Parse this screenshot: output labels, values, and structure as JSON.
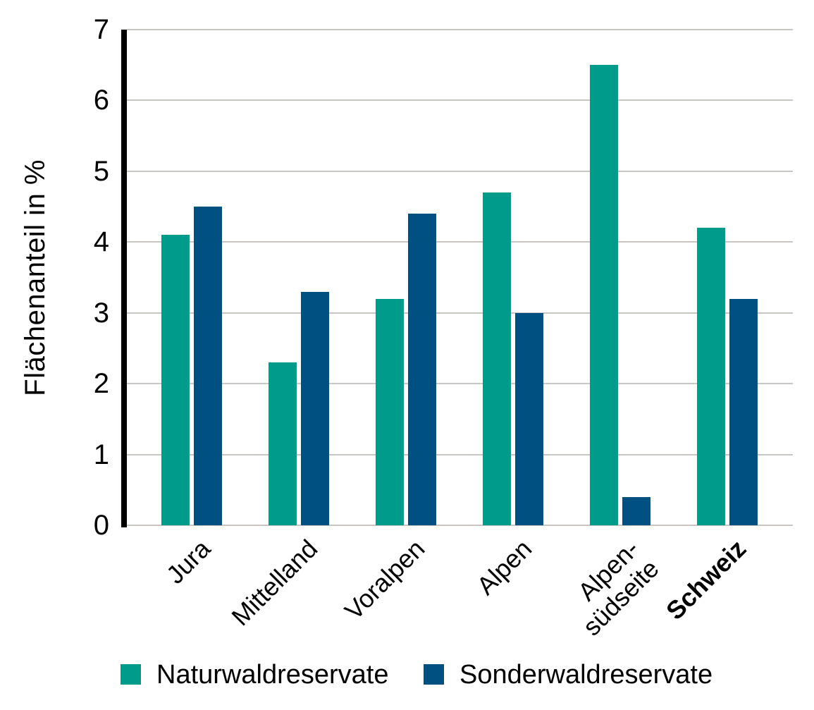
{
  "chart_data": {
    "type": "bar",
    "title": "",
    "xlabel": "",
    "ylabel": "Flächenanteil in %",
    "ylim": [
      0,
      7
    ],
    "ytick_step": 1,
    "yticks": [
      0,
      1,
      2,
      3,
      4,
      5,
      6,
      7
    ],
    "grid": true,
    "legend_position": "bottom",
    "categories": [
      {
        "label": "Jura",
        "bold": false
      },
      {
        "label": "Mittelland",
        "bold": false
      },
      {
        "label": "Voralpen",
        "bold": false
      },
      {
        "label": "Alpen",
        "bold": false
      },
      {
        "label": "Alpen-\nsüdseite",
        "bold": false
      },
      {
        "label": "Schweiz",
        "bold": true
      }
    ],
    "series": [
      {
        "name": "Naturwaldreservate",
        "color": "#009b8a",
        "values": [
          4.1,
          2.3,
          3.2,
          4.7,
          6.5,
          4.2
        ]
      },
      {
        "name": "Sonderwaldreservate",
        "color": "#005182",
        "values": [
          4.5,
          3.3,
          4.4,
          3.0,
          0.4,
          3.2
        ]
      }
    ]
  },
  "colors": {
    "background": "#ffffff",
    "gridline": "#c9c6c1",
    "axis": "#000000",
    "text": "#000000"
  }
}
